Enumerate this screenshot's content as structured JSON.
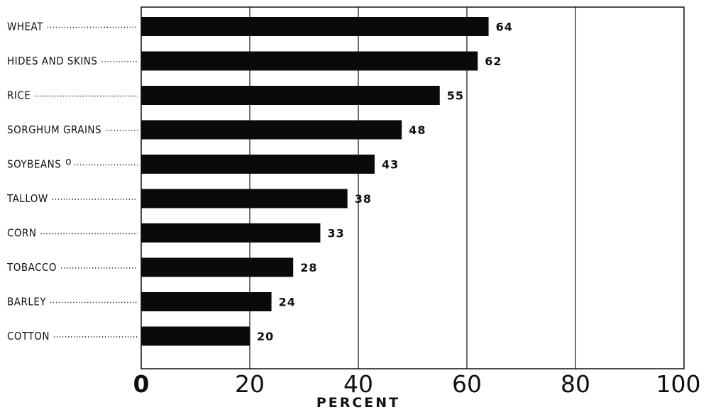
{
  "chart_data": {
    "type": "bar",
    "orientation": "horizontal",
    "categories": [
      "WHEAT",
      "HIDES AND SKINS",
      "RICE",
      "SORGHUM GRAINS",
      "SOYBEANS",
      "TALLOW",
      "CORN",
      "TOBACCO",
      "BARLEY",
      "COTTON"
    ],
    "values": [
      64,
      62,
      55,
      48,
      43,
      38,
      33,
      28,
      24,
      20
    ],
    "value_labels": [
      "64",
      "62",
      "55",
      "48",
      "43",
      "38",
      "33",
      "28",
      "24",
      "20"
    ],
    "category_markers": [
      "",
      "",
      "",
      "",
      "o",
      "",
      "",
      "",
      "",
      ""
    ],
    "title": "",
    "xlabel": "PERCENT",
    "ylabel": "",
    "xlim": [
      0,
      100
    ],
    "x_ticks": [
      0,
      20,
      40,
      60,
      80,
      100
    ],
    "x_tick_labels": [
      "0",
      "20",
      "40",
      "60",
      "80",
      "100"
    ],
    "grid": "vertical lines",
    "legend": "none",
    "bar_color": "#0a0a0a"
  }
}
